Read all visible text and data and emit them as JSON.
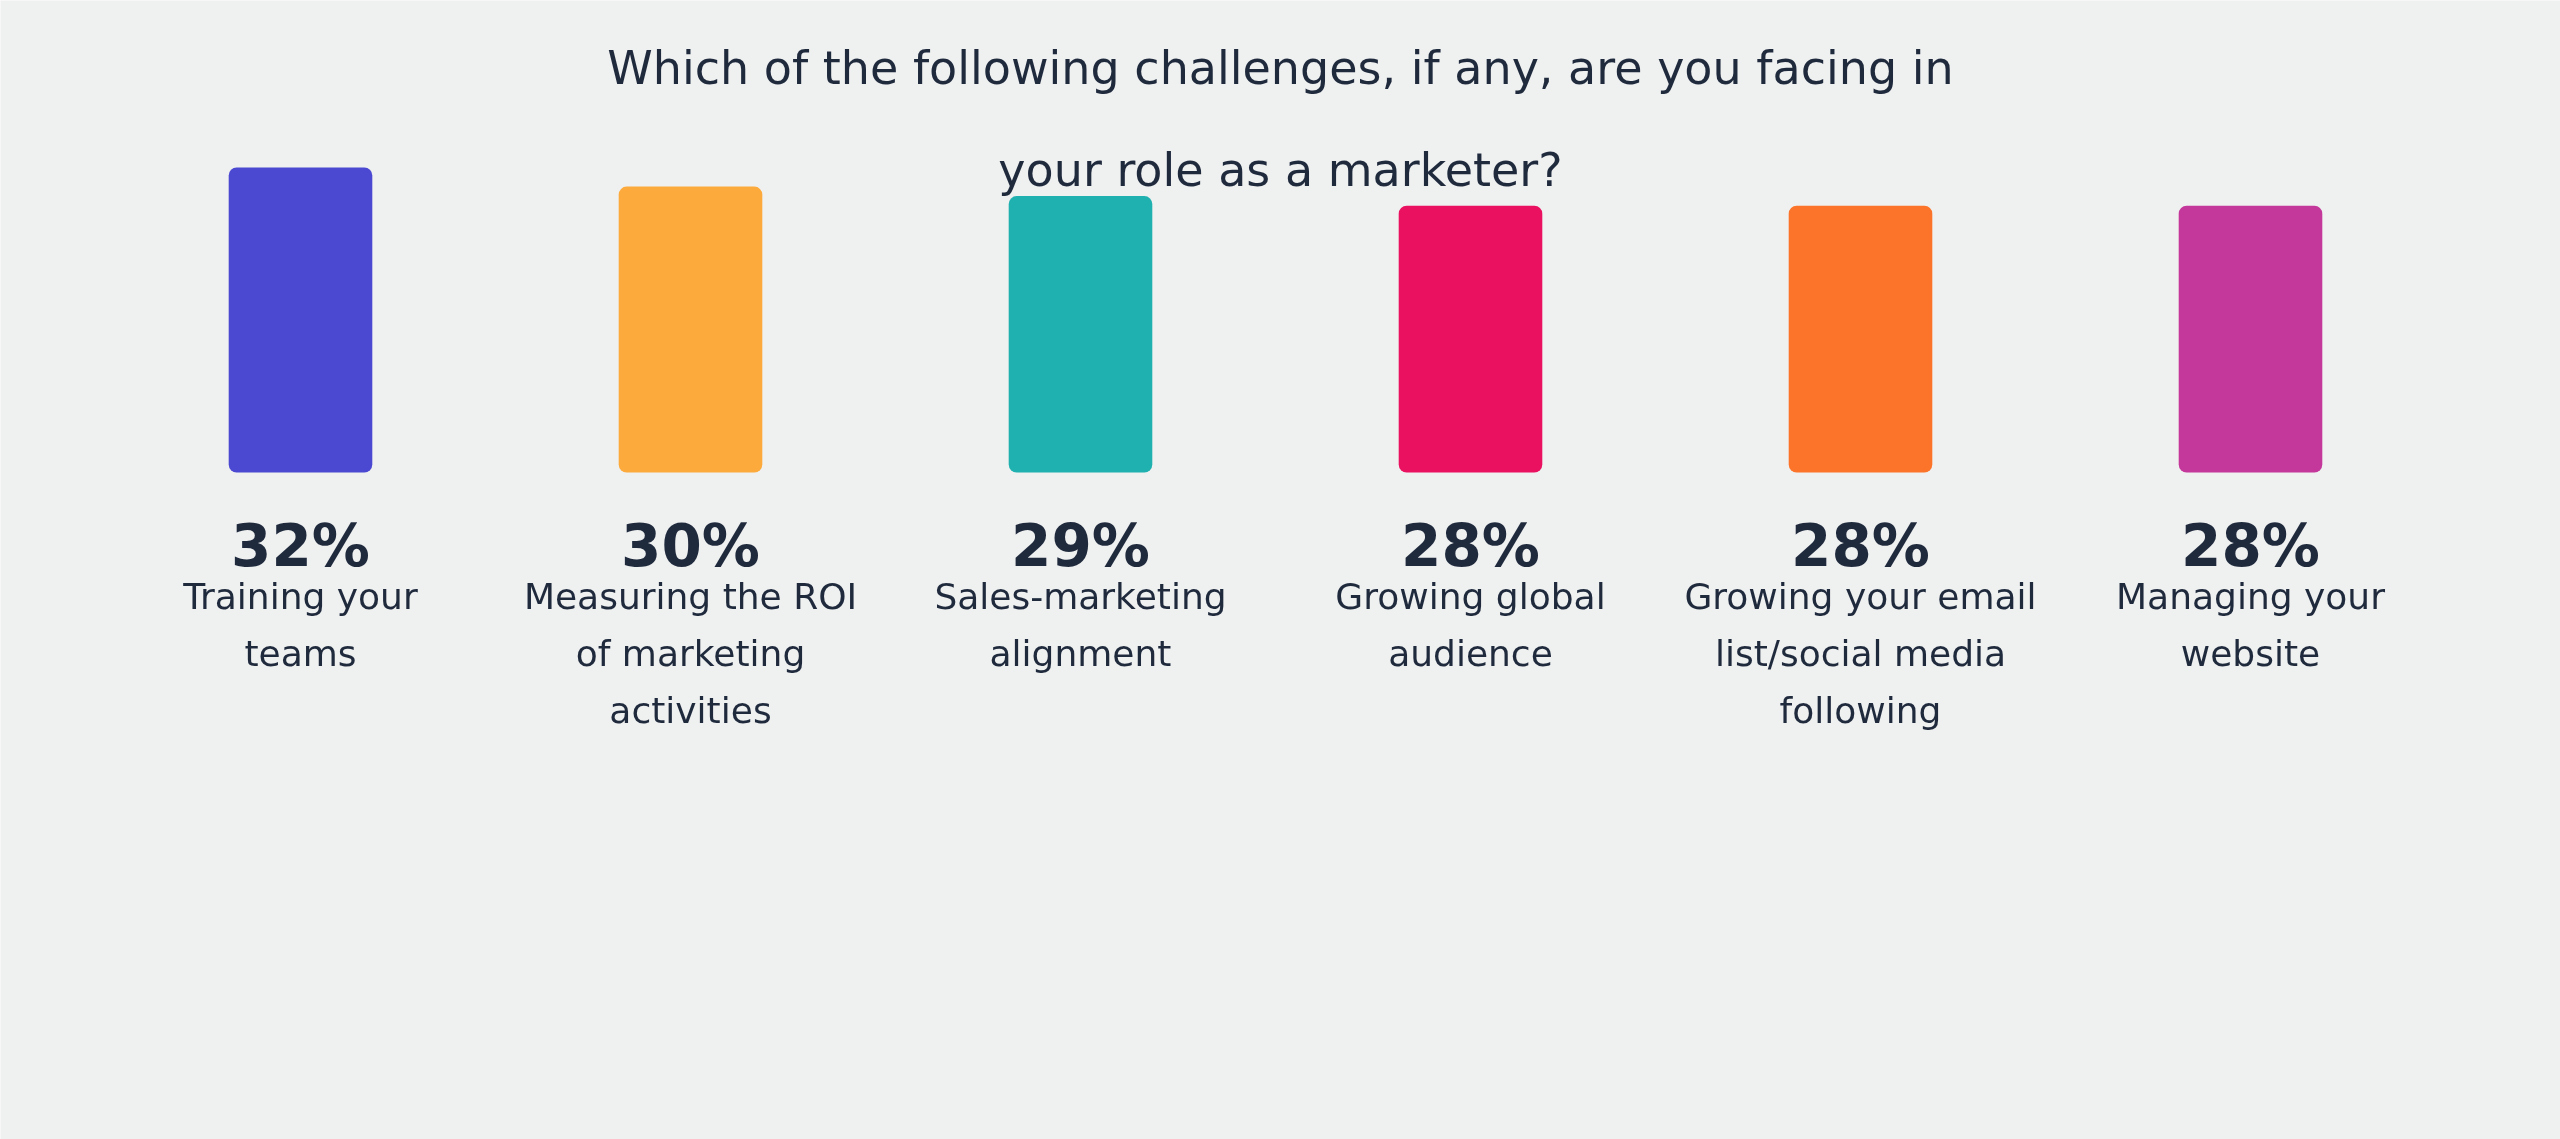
{
  "chart_data": {
    "type": "bar",
    "title": "Which of the following challenges, if any, are you facing in\nyour role as a marketer?",
    "categories": [
      "Training your teams",
      "Measuring the ROI of marketing activities",
      "Sales-marketing alignment",
      "Growing global audience",
      "Growing your email list/social media following",
      "Managing your website"
    ],
    "values": [
      32,
      30,
      29,
      28,
      28,
      28
    ],
    "colors": [
      "#4b48d2",
      "#fcaa3c",
      "#1fb1b0",
      "#e91160",
      "#fb742a",
      "#c3389a"
    ],
    "value_labels": [
      "32%",
      "30%",
      "29%",
      "28%",
      "28%",
      "28%"
    ]
  }
}
